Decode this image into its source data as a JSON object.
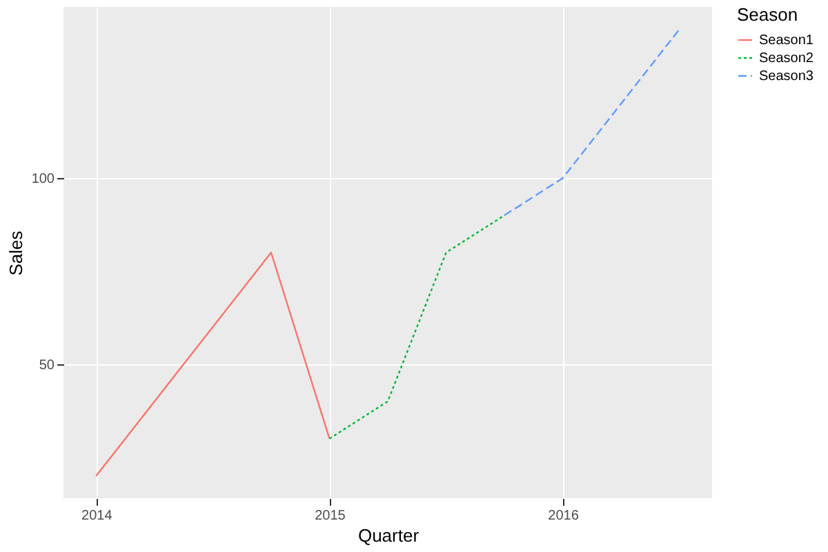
{
  "chart_data": {
    "type": "line",
    "xlabel": "Quarter",
    "ylabel": "Sales",
    "legend_title": "Season",
    "xlim": [
      2013.86,
      2016.64
    ],
    "xticks": [
      2014,
      2015,
      2016
    ],
    "ylim": [
      14,
      146
    ],
    "yticks": [
      50,
      100
    ],
    "grid": true,
    "legend": "right",
    "series": [
      {
        "name": "Season1",
        "color": "#f8766d",
        "line_style": "solid",
        "x": [
          2014,
          2014.75,
          2015
        ],
        "values": [
          20,
          80,
          30
        ]
      },
      {
        "name": "Season2",
        "color": "#00ba38",
        "line_style": "dotted",
        "x": [
          2015,
          2015.25,
          2015.5,
          2015.75
        ],
        "values": [
          30,
          40,
          80,
          90
        ]
      },
      {
        "name": "Season3",
        "color": "#619cff",
        "line_style": "dashed",
        "x": [
          2015.75,
          2016,
          2016.5
        ],
        "values": [
          90,
          100,
          140
        ]
      }
    ]
  }
}
